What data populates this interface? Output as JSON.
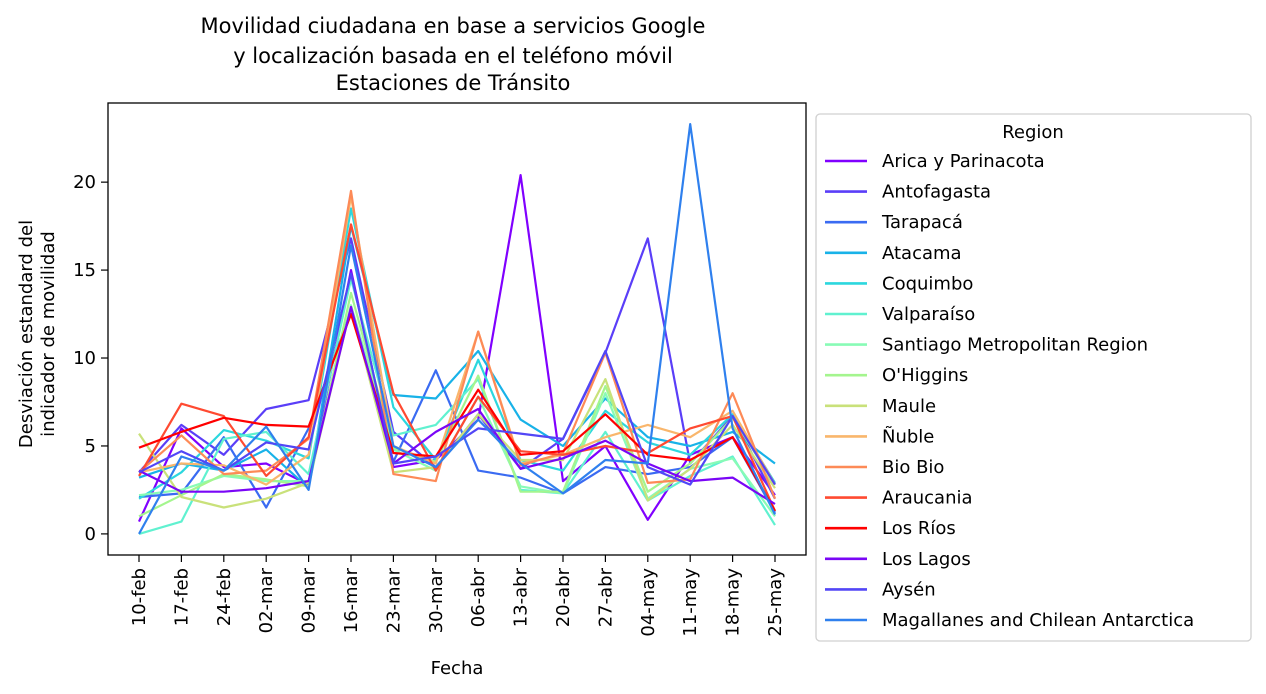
{
  "chart_data": {
    "type": "line",
    "title_lines": [
      "Movilidad ciudadana en base a servicios Google",
      "y localización basada en el teléfono móvil",
      "Estaciones de Tránsito"
    ],
    "xlabel": "Fecha",
    "ylabel_lines": [
      "Desviación estandard del",
      "indicador de movilidad"
    ],
    "x": [
      "10-feb",
      "17-feb",
      "24-feb",
      "02-mar",
      "09-mar",
      "16-mar",
      "23-mar",
      "30-mar",
      "06-abr",
      "13-abr",
      "20-abr",
      "27-abr",
      "04-may",
      "11-may",
      "18-may",
      "25-may"
    ],
    "ylim": [
      -1.2,
      24.5
    ],
    "yticks": [
      0,
      5,
      10,
      15,
      20
    ],
    "legend_title": "Region",
    "legend_position": "outside-right",
    "grid": false,
    "series": [
      {
        "name": "Arica y Parinacota",
        "color": "#8000ff",
        "values": [
          0.7,
          6.0,
          3.8,
          4.0,
          2.8,
          15.0,
          3.8,
          4.2,
          6.5,
          20.4,
          3.0,
          5.0,
          0.8,
          4.5,
          5.5,
          2.2
        ]
      },
      {
        "name": "Antofagasta",
        "color": "#5a3ef8",
        "values": [
          3.5,
          6.2,
          4.5,
          7.1,
          7.6,
          16.8,
          5.8,
          3.8,
          6.8,
          3.7,
          5.4,
          10.3,
          16.8,
          4.0,
          6.7,
          2.0
        ]
      },
      {
        "name": "Tarapacá",
        "color": "#3a6bf2",
        "values": [
          2.1,
          2.3,
          5.5,
          1.5,
          6.0,
          12.7,
          4.1,
          9.3,
          3.6,
          3.2,
          2.3,
          3.8,
          3.4,
          3.8,
          5.5,
          1.2
        ]
      },
      {
        "name": "Atacama",
        "color": "#18b2e8",
        "values": [
          3.2,
          4.0,
          3.6,
          4.8,
          2.6,
          17.5,
          7.9,
          7.7,
          10.4,
          6.5,
          5.0,
          7.7,
          5.5,
          5.0,
          5.8,
          4.0
        ]
      },
      {
        "name": "Coquimbo",
        "color": "#2cd7de",
        "values": [
          2.0,
          3.5,
          5.9,
          5.3,
          4.3,
          18.5,
          7.2,
          4.2,
          9.9,
          4.2,
          3.6,
          7.0,
          5.2,
          4.5,
          6.8,
          2.9
        ]
      },
      {
        "name": "Valparaíso",
        "color": "#60f1d0",
        "values": [
          0.0,
          0.7,
          5.4,
          5.8,
          3.4,
          14.5,
          5.6,
          6.2,
          8.8,
          2.5,
          2.3,
          5.8,
          1.9,
          3.3,
          4.4,
          0.5
        ]
      },
      {
        "name": "Santiago Metropolitan Region",
        "color": "#88fbb6",
        "values": [
          2.2,
          2.5,
          3.3,
          3.0,
          3.0,
          13.0,
          4.8,
          3.6,
          7.8,
          2.7,
          2.3,
          8.0,
          2.0,
          3.7,
          4.3,
          1.0
        ]
      },
      {
        "name": "O'Higgins",
        "color": "#a4f58e",
        "values": [
          1.0,
          2.2,
          3.4,
          3.1,
          2.7,
          13.7,
          4.9,
          4.1,
          9.0,
          2.4,
          2.4,
          8.4,
          2.4,
          4.0,
          6.6,
          2.8
        ]
      },
      {
        "name": "Maule",
        "color": "#c9e17a",
        "values": [
          5.7,
          2.1,
          1.5,
          2.0,
          2.9,
          12.9,
          3.5,
          3.8,
          6.8,
          4.2,
          4.2,
          8.8,
          1.9,
          3.7,
          6.2,
          2.6
        ]
      },
      {
        "name": "Ñuble",
        "color": "#f9b66c",
        "values": [
          3.5,
          4.0,
          3.9,
          2.8,
          4.5,
          19.2,
          5.0,
          4.0,
          11.5,
          4.0,
          4.5,
          5.5,
          6.2,
          5.5,
          7.0,
          2.8
        ]
      },
      {
        "name": "Bio Bio",
        "color": "#fd8a57",
        "values": [
          3.5,
          5.6,
          3.4,
          3.6,
          5.4,
          19.5,
          3.4,
          3.0,
          11.5,
          3.9,
          4.6,
          10.3,
          2.9,
          3.1,
          8.0,
          2.0
        ]
      },
      {
        "name": "Araucania",
        "color": "#ff4a31",
        "values": [
          3.3,
          7.4,
          6.7,
          3.3,
          5.5,
          17.6,
          8.0,
          3.6,
          7.8,
          4.7,
          4.5,
          5.0,
          4.6,
          6.0,
          6.7,
          1.3
        ]
      },
      {
        "name": "Los Ríos",
        "color": "#ff0000",
        "values": [
          4.9,
          5.8,
          6.6,
          6.2,
          6.1,
          12.5,
          4.6,
          4.4,
          8.2,
          4.5,
          4.7,
          6.8,
          4.5,
          4.2,
          5.5,
          1.3
        ]
      },
      {
        "name": "Los Lagos",
        "color": "#7a06f6",
        "values": [
          3.6,
          2.4,
          2.4,
          2.6,
          3.0,
          12.9,
          4.0,
          5.8,
          7.1,
          3.7,
          4.3,
          5.3,
          4.0,
          3.0,
          3.2,
          1.7
        ]
      },
      {
        "name": "Aysén",
        "color": "#5246f6",
        "values": [
          3.5,
          4.7,
          3.6,
          5.2,
          4.8,
          14.8,
          4.0,
          4.4,
          6.0,
          5.7,
          5.4,
          10.4,
          3.8,
          2.8,
          6.7,
          2.8
        ]
      },
      {
        "name": "Magallanes and Chilean Antarctica",
        "color": "#2f80ee",
        "values": [
          0.0,
          4.4,
          3.6,
          6.1,
          2.5,
          16.4,
          5.0,
          3.8,
          6.5,
          4.0,
          2.3,
          4.2,
          4.0,
          23.3,
          6.0,
          1.1
        ]
      }
    ]
  }
}
